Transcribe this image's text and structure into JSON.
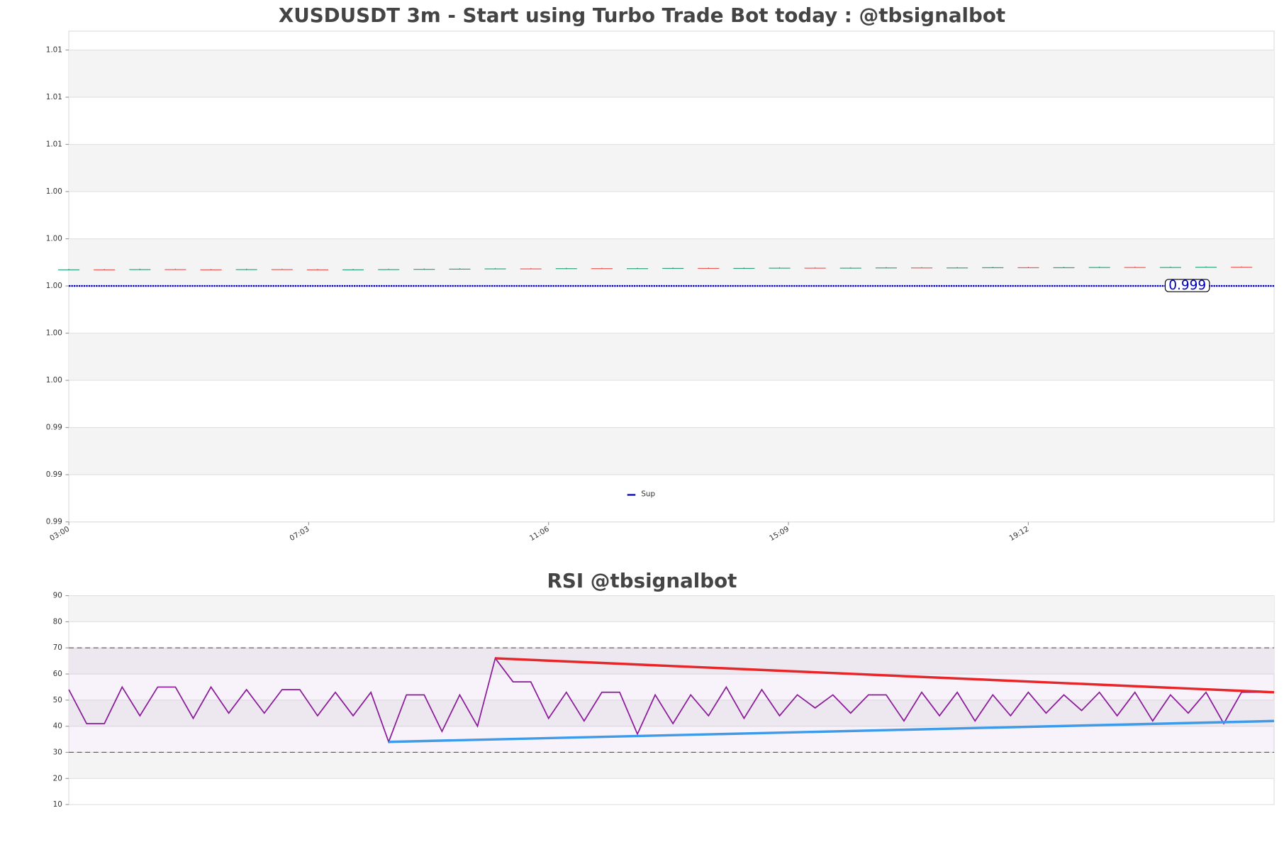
{
  "chart_data": [
    {
      "type": "candlestick",
      "title": "XUSDUSDT 3m - Start using Turbo Trade Bot today : @tbsignalbot",
      "x": [
        0,
        12,
        24,
        36,
        48,
        60,
        72,
        84,
        96,
        108,
        120,
        132,
        144,
        156,
        168,
        180,
        192,
        204,
        216,
        228,
        240,
        252,
        264,
        276,
        288,
        300,
        312,
        324,
        336,
        348,
        360,
        372,
        384,
        396
      ],
      "open": [
        0.99968,
        0.9997,
        0.99969,
        0.99971,
        0.9997,
        0.99969,
        0.99971,
        0.9997,
        0.99969,
        0.9997,
        0.99971,
        0.99972,
        0.99973,
        0.99974,
        0.99973,
        0.99975,
        0.99974,
        0.99975,
        0.99976,
        0.99975,
        0.99976,
        0.99977,
        0.99976,
        0.99977,
        0.99978,
        0.99977,
        0.99978,
        0.99979,
        0.99978,
        0.99979,
        0.9998,
        0.99979,
        0.9998,
        0.99981
      ],
      "high": [
        0.99972,
        0.99972,
        0.99973,
        0.99973,
        0.99972,
        0.99973,
        0.99973,
        0.99972,
        0.99972,
        0.99973,
        0.99974,
        0.99975,
        0.99976,
        0.99976,
        0.99977,
        0.99977,
        0.99977,
        0.99978,
        0.99978,
        0.99978,
        0.99979,
        0.99979,
        0.99979,
        0.9998,
        0.9998,
        0.9998,
        0.99981,
        0.99981,
        0.99981,
        0.99982,
        0.99982,
        0.99982,
        0.99983,
        0.99983
      ],
      "low": [
        0.99966,
        0.99967,
        0.99967,
        0.99968,
        0.99967,
        0.99967,
        0.99968,
        0.99967,
        0.99967,
        0.99968,
        0.99969,
        0.9997,
        0.99971,
        0.99971,
        0.99971,
        0.99972,
        0.99972,
        0.99973,
        0.99973,
        0.99973,
        0.99974,
        0.99974,
        0.99974,
        0.99975,
        0.99975,
        0.99975,
        0.99976,
        0.99976,
        0.99976,
        0.99977,
        0.99977,
        0.99977,
        0.99978,
        0.99978
      ],
      "close": [
        0.9997,
        0.99969,
        0.99971,
        0.9997,
        0.99969,
        0.99971,
        0.9997,
        0.99969,
        0.9997,
        0.99971,
        0.99972,
        0.99973,
        0.99974,
        0.99973,
        0.99975,
        0.99974,
        0.99975,
        0.99976,
        0.99975,
        0.99976,
        0.99977,
        0.99976,
        0.99977,
        0.99978,
        0.99977,
        0.99978,
        0.99979,
        0.99978,
        0.99979,
        0.9998,
        0.99979,
        0.9998,
        0.99981,
        0.9998
      ],
      "up_color": "#26a17b",
      "down_color": "#ef5350",
      "lines": [
        {
          "name": "Sup",
          "value": 0.999,
          "color": "#0000bb"
        }
      ],
      "xlim": [
        0,
        407
      ],
      "xticks": [
        {
          "value": 0,
          "label": "03:00"
        },
        {
          "value": 81,
          "label": "07:03"
        },
        {
          "value": 162,
          "label": "11:06"
        },
        {
          "value": 243,
          "label": "15:09"
        },
        {
          "value": 324,
          "label": "19:12"
        }
      ],
      "ylim": [
        0.989,
        1.0098
      ],
      "yticks": [
        {
          "value": 0.989,
          "label": "0.99"
        },
        {
          "value": 0.991,
          "label": "0.99"
        },
        {
          "value": 0.993,
          "label": "0.99"
        },
        {
          "value": 0.995,
          "label": "1.00"
        },
        {
          "value": 0.997,
          "label": "1.00"
        },
        {
          "value": 0.999,
          "label": "1.00"
        },
        {
          "value": 1.001,
          "label": "1.00"
        },
        {
          "value": 1.003,
          "label": "1.00"
        },
        {
          "value": 1.005,
          "label": "1.01"
        },
        {
          "value": 1.007,
          "label": "1.01"
        },
        {
          "value": 1.009,
          "label": "1.01"
        }
      ],
      "grid": true
    },
    {
      "type": "line",
      "title": "RSI @tbsignalbot",
      "x": [
        0,
        6,
        12,
        18,
        24,
        30,
        36,
        42,
        48,
        54,
        60,
        66,
        72,
        78,
        84,
        90,
        96,
        102,
        108,
        114,
        120,
        126,
        132,
        138,
        144,
        150,
        156,
        162,
        168,
        174,
        180,
        186,
        192,
        198,
        204,
        210,
        216,
        222,
        228,
        234,
        240,
        246,
        252,
        258,
        264,
        270,
        276,
        282,
        288,
        294,
        300,
        306,
        312,
        318,
        324,
        330,
        336,
        342,
        348,
        354,
        360,
        366,
        372,
        378,
        384,
        390,
        396,
        402
      ],
      "series": [
        {
          "color": "#8b1a9b",
          "values": [
            54,
            41,
            41,
            55,
            44,
            55,
            55,
            43,
            55,
            45,
            54,
            45,
            54,
            54,
            44,
            53,
            44,
            53,
            34,
            52,
            52,
            38,
            52,
            40,
            66,
            57,
            57,
            43,
            53,
            42,
            53,
            53,
            37,
            52,
            41,
            52,
            44,
            55,
            43,
            54,
            44,
            52,
            47,
            52,
            45,
            52,
            52,
            42,
            53,
            44,
            53,
            42,
            52,
            44,
            53,
            45,
            52,
            46,
            53,
            44,
            53,
            42,
            52,
            45,
            53,
            41,
            53,
            53
          ]
        }
      ],
      "trendlines": [
        {
          "color": "#e8262a",
          "x": [
            144,
            407
          ],
          "values": [
            66,
            53
          ]
        },
        {
          "color": "#3d9be9",
          "x": [
            108,
            407
          ],
          "values": [
            34,
            42
          ]
        }
      ],
      "levels": [
        70,
        30
      ],
      "xlim": [
        0,
        407
      ],
      "ylim": [
        10,
        90
      ],
      "yticks": [
        10,
        20,
        30,
        40,
        50,
        60,
        70,
        80,
        90
      ],
      "grid": true
    }
  ]
}
